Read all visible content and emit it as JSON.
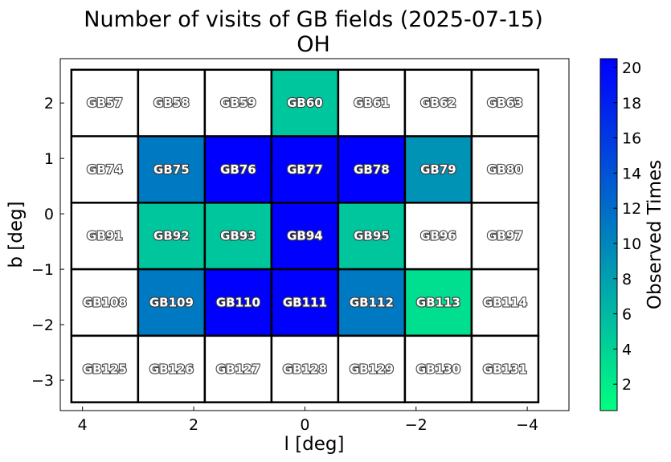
{
  "chart_data": {
    "type": "heatmap",
    "title": "Number of visits of GB fields (2025-07-15)",
    "subtitle": "OH",
    "xlabel": "l [deg]",
    "ylabel": "b [deg]",
    "xlim": [
      4.4,
      -4.75
    ],
    "ylim": [
      -3.55,
      2.8
    ],
    "x_inverted": true,
    "x_ticks": [
      4,
      2,
      0,
      -2,
      -4
    ],
    "x_tick_labels": [
      "4",
      "2",
      "0",
      "−2",
      "−4"
    ],
    "y_ticks": [
      2,
      1,
      0,
      -1,
      -2,
      -3
    ],
    "y_tick_labels": [
      "2",
      "1",
      "0",
      "−1",
      "−2",
      "−3"
    ],
    "column_centers": [
      3.6,
      2.4,
      1.2,
      0.0,
      -1.2,
      -2.4,
      -3.6
    ],
    "row_centers": [
      2.0,
      0.8,
      -0.4,
      -1.6,
      -2.8
    ],
    "cell_size": 1.2,
    "fields": [
      [
        "GB57",
        "GB58",
        "GB59",
        "GB60",
        "GB61",
        "GB62",
        "GB63"
      ],
      [
        "GB74",
        "GB75",
        "GB76",
        "GB77",
        "GB78",
        "GB79",
        "GB80"
      ],
      [
        "GB91",
        "GB92",
        "GB93",
        "GB94",
        "GB95",
        "GB96",
        "GB97"
      ],
      [
        "GB108",
        "GB109",
        "GB110",
        "GB111",
        "GB112",
        "GB113",
        "GB114"
      ],
      [
        "GB125",
        "GB126",
        "GB127",
        "GB128",
        "GB129",
        "GB130",
        "GB131"
      ]
    ],
    "values": [
      [
        0,
        0,
        0,
        5,
        0,
        0,
        0
      ],
      [
        0,
        11,
        21,
        21,
        21,
        9,
        0
      ],
      [
        0,
        5,
        5,
        21,
        5,
        0,
        0
      ],
      [
        0,
        11,
        21,
        21,
        11,
        3,
        0
      ],
      [
        0,
        0,
        0,
        0,
        0,
        0,
        0
      ]
    ],
    "colorbar": {
      "label": "Observed Times",
      "min": 0.5,
      "max": 20.5,
      "ticks": [
        2,
        4,
        6,
        8,
        10,
        12,
        14,
        16,
        18,
        20
      ],
      "tick_labels": [
        "2",
        "4",
        "6",
        "8",
        "10",
        "12",
        "14",
        "16",
        "18",
        "20"
      ],
      "colormap": "winter_r",
      "color_low": "#00ff80",
      "color_high": "#0000ff"
    },
    "zero_cell_color": "#ffffff",
    "grid": false
  }
}
